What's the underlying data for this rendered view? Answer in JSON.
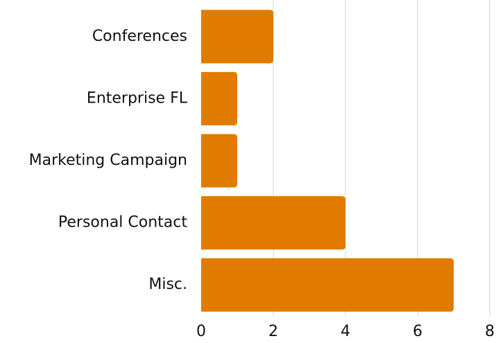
{
  "chart_data": {
    "type": "barh",
    "categories": [
      "Conferences",
      "Enterprise FL",
      "Marketing Campaign",
      "Personal Contact",
      "Misc."
    ],
    "values": [
      2,
      1,
      1,
      4,
      7
    ],
    "color": "#e07b00",
    "xlim": [
      0,
      8
    ],
    "xticks": [
      0,
      2,
      4,
      6,
      8
    ],
    "grid": true
  }
}
